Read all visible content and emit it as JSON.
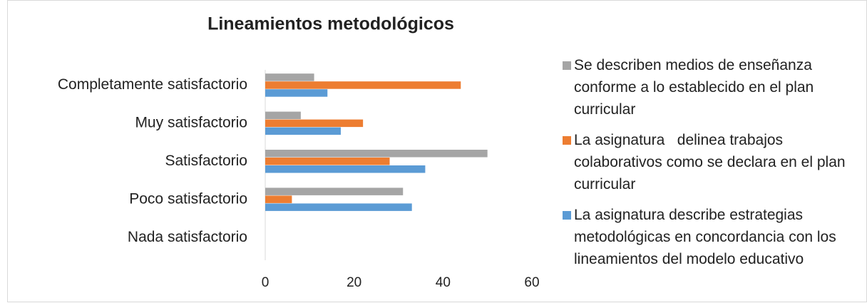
{
  "chart_data": {
    "type": "hbar",
    "title": "Lineamientos metodológicos",
    "categories": [
      "Completamente satisfactorio",
      "Muy satisfactorio",
      "Satisfactorio",
      "Poco satisfactorio",
      "Nada satisfactorio"
    ],
    "series": [
      {
        "name": "Se describen medios de enseñanza conforme a lo establecido en el plan curricular",
        "color": "#a5a5a5",
        "values": [
          11,
          8,
          50,
          31,
          0
        ]
      },
      {
        "name": "La asignatura   delinea trabajos colaborativos como se declara en el plan curricular",
        "color": "#ed7d31",
        "values": [
          44,
          22,
          28,
          6,
          0
        ]
      },
      {
        "name": "La asignatura describe estrategias metodológicas en concordancia con los lineamientos del modelo educativo",
        "color": "#5b9bd5",
        "values": [
          14,
          17,
          36,
          33,
          0
        ]
      }
    ],
    "xlim": [
      0,
      60
    ],
    "xticks": [
      0,
      20,
      40,
      60
    ],
    "legend": "right"
  }
}
